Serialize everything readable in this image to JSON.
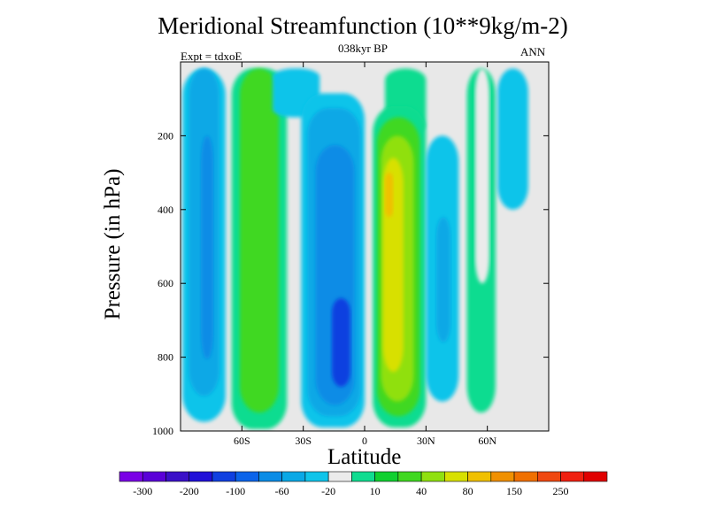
{
  "chart_data": {
    "type": "heatmap",
    "title": "Meridional Streamfunction (10**9kg/m-2)",
    "subtitle": "038kyr BP",
    "left_annotation": "Expt = tdxoE",
    "right_annotation": "ANN",
    "xlabel": "Latitude",
    "ylabel": "Pressure (in hPa)",
    "xlim": [
      -90,
      90
    ],
    "ylim": [
      1000,
      0
    ],
    "x_ticks": [
      {
        "value": -60,
        "label": "60S"
      },
      {
        "value": -30,
        "label": "30S"
      },
      {
        "value": 0,
        "label": "0"
      },
      {
        "value": 30,
        "label": "30N"
      },
      {
        "value": 60,
        "label": "60N"
      }
    ],
    "y_ticks": [
      {
        "value": 200,
        "label": "200"
      },
      {
        "value": 400,
        "label": "400"
      },
      {
        "value": 600,
        "label": "600"
      },
      {
        "value": 800,
        "label": "800"
      },
      {
        "value": 1000,
        "label": "1000"
      }
    ],
    "colorbar": {
      "colors": [
        "#7a00e6",
        "#5a00d8",
        "#3a10c8",
        "#2010d8",
        "#1040e0",
        "#0c64ea",
        "#0a8ce6",
        "#0aa8e6",
        "#10c4ea",
        "#ebebeb",
        "#10dc90",
        "#10d030",
        "#40d820",
        "#90e010",
        "#d8e000",
        "#f0c000",
        "#f09000",
        "#f07000",
        "#f04810",
        "#f02010",
        "#e00000"
      ],
      "labels": [
        {
          "boundary": 1,
          "text": "-300"
        },
        {
          "boundary": 3,
          "text": "-200"
        },
        {
          "boundary": 5,
          "text": "-100"
        },
        {
          "boundary": 7,
          "text": "-60"
        },
        {
          "boundary": 9,
          "text": "-20"
        },
        {
          "boundary": 11,
          "text": "10"
        },
        {
          "boundary": 13,
          "text": "40"
        },
        {
          "boundary": 15,
          "text": "80"
        },
        {
          "boundary": 17,
          "text": "150"
        },
        {
          "boundary": 19,
          "text": "250"
        }
      ]
    },
    "background_color": "#e8e8e8",
    "cells": [
      {
        "name": "sh-polar-cell-outer",
        "color": "#10c4ea",
        "lat": [
          -89,
          -68
        ],
        "p": [
          18,
          975
        ]
      },
      {
        "name": "sh-polar-cell-mid",
        "color": "#0aa8e6",
        "lat": [
          -86,
          -71
        ],
        "p": [
          18,
          905
        ]
      },
      {
        "name": "sh-polar-cell-core",
        "color": "#0a8ce6",
        "lat": [
          -80,
          -74
        ],
        "p": [
          200,
          805
        ]
      },
      {
        "name": "sh-ferrel-cell-outer",
        "color": "#10dc90",
        "lat": [
          -65,
          -38
        ],
        "p": [
          18,
          995
        ]
      },
      {
        "name": "sh-ferrel-cell-core",
        "color": "#40d820",
        "lat": [
          -61,
          -42
        ],
        "p": [
          18,
          950
        ]
      },
      {
        "name": "sh-hadley-cell-top",
        "color": "#10c4ea",
        "lat": [
          -45,
          -22
        ],
        "p": [
          18,
          150
        ]
      },
      {
        "name": "sh-hadley-cell-outer",
        "color": "#10c4ea",
        "lat": [
          -31,
          0
        ],
        "p": [
          85,
          990
        ]
      },
      {
        "name": "sh-hadley-cell-mid",
        "color": "#0aa8e6",
        "lat": [
          -28,
          -2
        ],
        "p": [
          125,
          960
        ]
      },
      {
        "name": "sh-hadley-cell-inner",
        "color": "#0a8ce6",
        "lat": [
          -24,
          -5
        ],
        "p": [
          225,
          930
        ]
      },
      {
        "name": "sh-hadley-cell-core",
        "color": "#1040e0",
        "lat": [
          -16,
          -7
        ],
        "p": [
          640,
          880
        ]
      },
      {
        "name": "nh-hadley-cell-top",
        "color": "#10dc90",
        "lat": [
          10,
          30
        ],
        "p": [
          18,
          200
        ]
      },
      {
        "name": "nh-hadley-cell-outer",
        "color": "#10dc90",
        "lat": [
          4,
          30
        ],
        "p": [
          120,
          990
        ]
      },
      {
        "name": "nh-hadley-cell-mid",
        "color": "#40d820",
        "lat": [
          6,
          27
        ],
        "p": [
          150,
          960
        ]
      },
      {
        "name": "nh-hadley-cell-inner",
        "color": "#90e010",
        "lat": [
          8,
          24
        ],
        "p": [
          200,
          920
        ]
      },
      {
        "name": "nh-hadley-cell-core",
        "color": "#d8e000",
        "lat": [
          9,
          19
        ],
        "p": [
          260,
          840
        ]
      },
      {
        "name": "nh-hadley-cell-max",
        "color": "#f0c000",
        "lat": [
          10,
          14
        ],
        "p": [
          300,
          420
        ]
      },
      {
        "name": "nh-ferrel-cell",
        "color": "#10c4ea",
        "lat": [
          30,
          46
        ],
        "p": [
          200,
          920
        ]
      },
      {
        "name": "nh-ferrel-cell-core",
        "color": "#0aa8e6",
        "lat": [
          35,
          42
        ],
        "p": [
          420,
          760
        ]
      },
      {
        "name": "nh-polar-cell",
        "color": "#10dc90",
        "lat": [
          50,
          64
        ],
        "p": [
          18,
          950
        ]
      },
      {
        "name": "nh-polar-cell-gap",
        "color": "#ebebeb",
        "lat": [
          54,
          61
        ],
        "p": [
          18,
          600
        ]
      },
      {
        "name": "nh-highlat-cell",
        "color": "#10c4ea",
        "lat": [
          65,
          80
        ],
        "p": [
          18,
          400
        ]
      }
    ]
  }
}
